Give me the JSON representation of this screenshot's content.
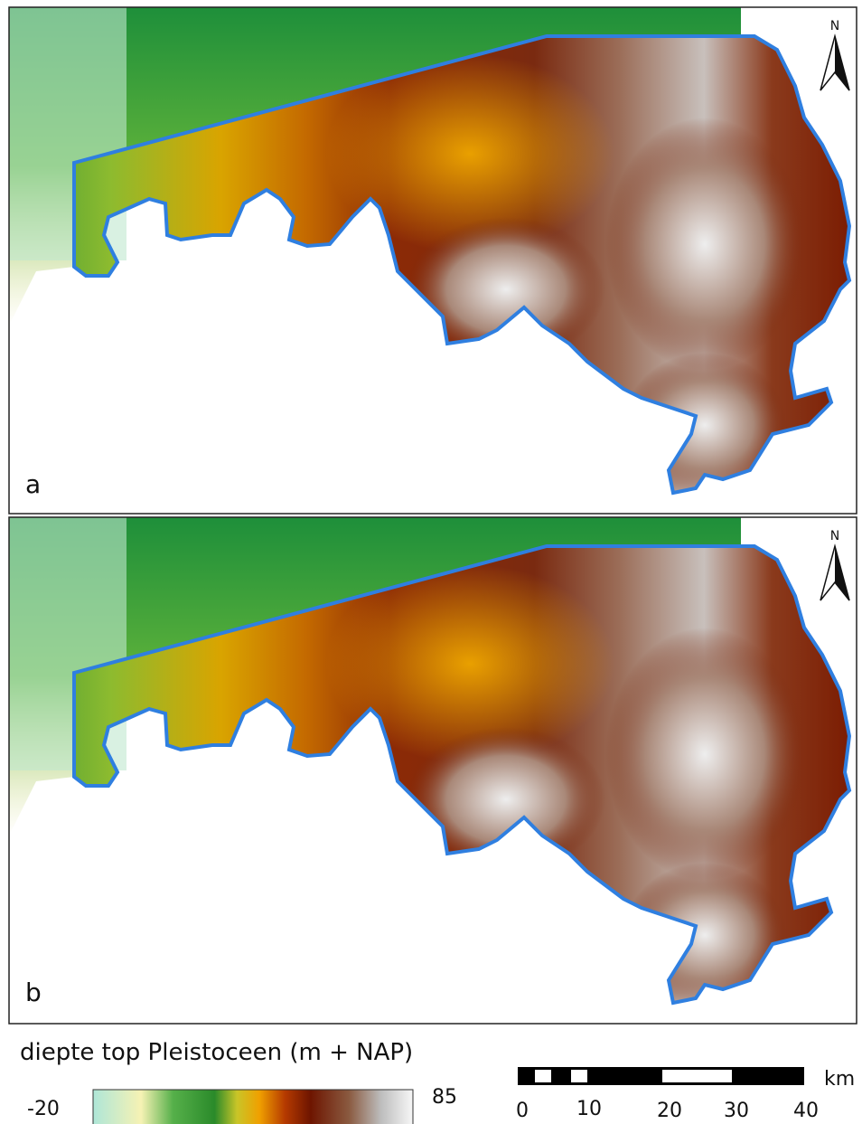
{
  "panels": [
    {
      "label": "a",
      "north": "N"
    },
    {
      "label": "b",
      "north": "N"
    }
  ],
  "legend": {
    "title": "diepte top Pleistoceen (m + NAP)",
    "min_label": "-20",
    "max_label": "85"
  },
  "scale_bar": {
    "ticks": [
      "0",
      "10",
      "20",
      "30",
      "40"
    ],
    "unit": "km"
  }
}
